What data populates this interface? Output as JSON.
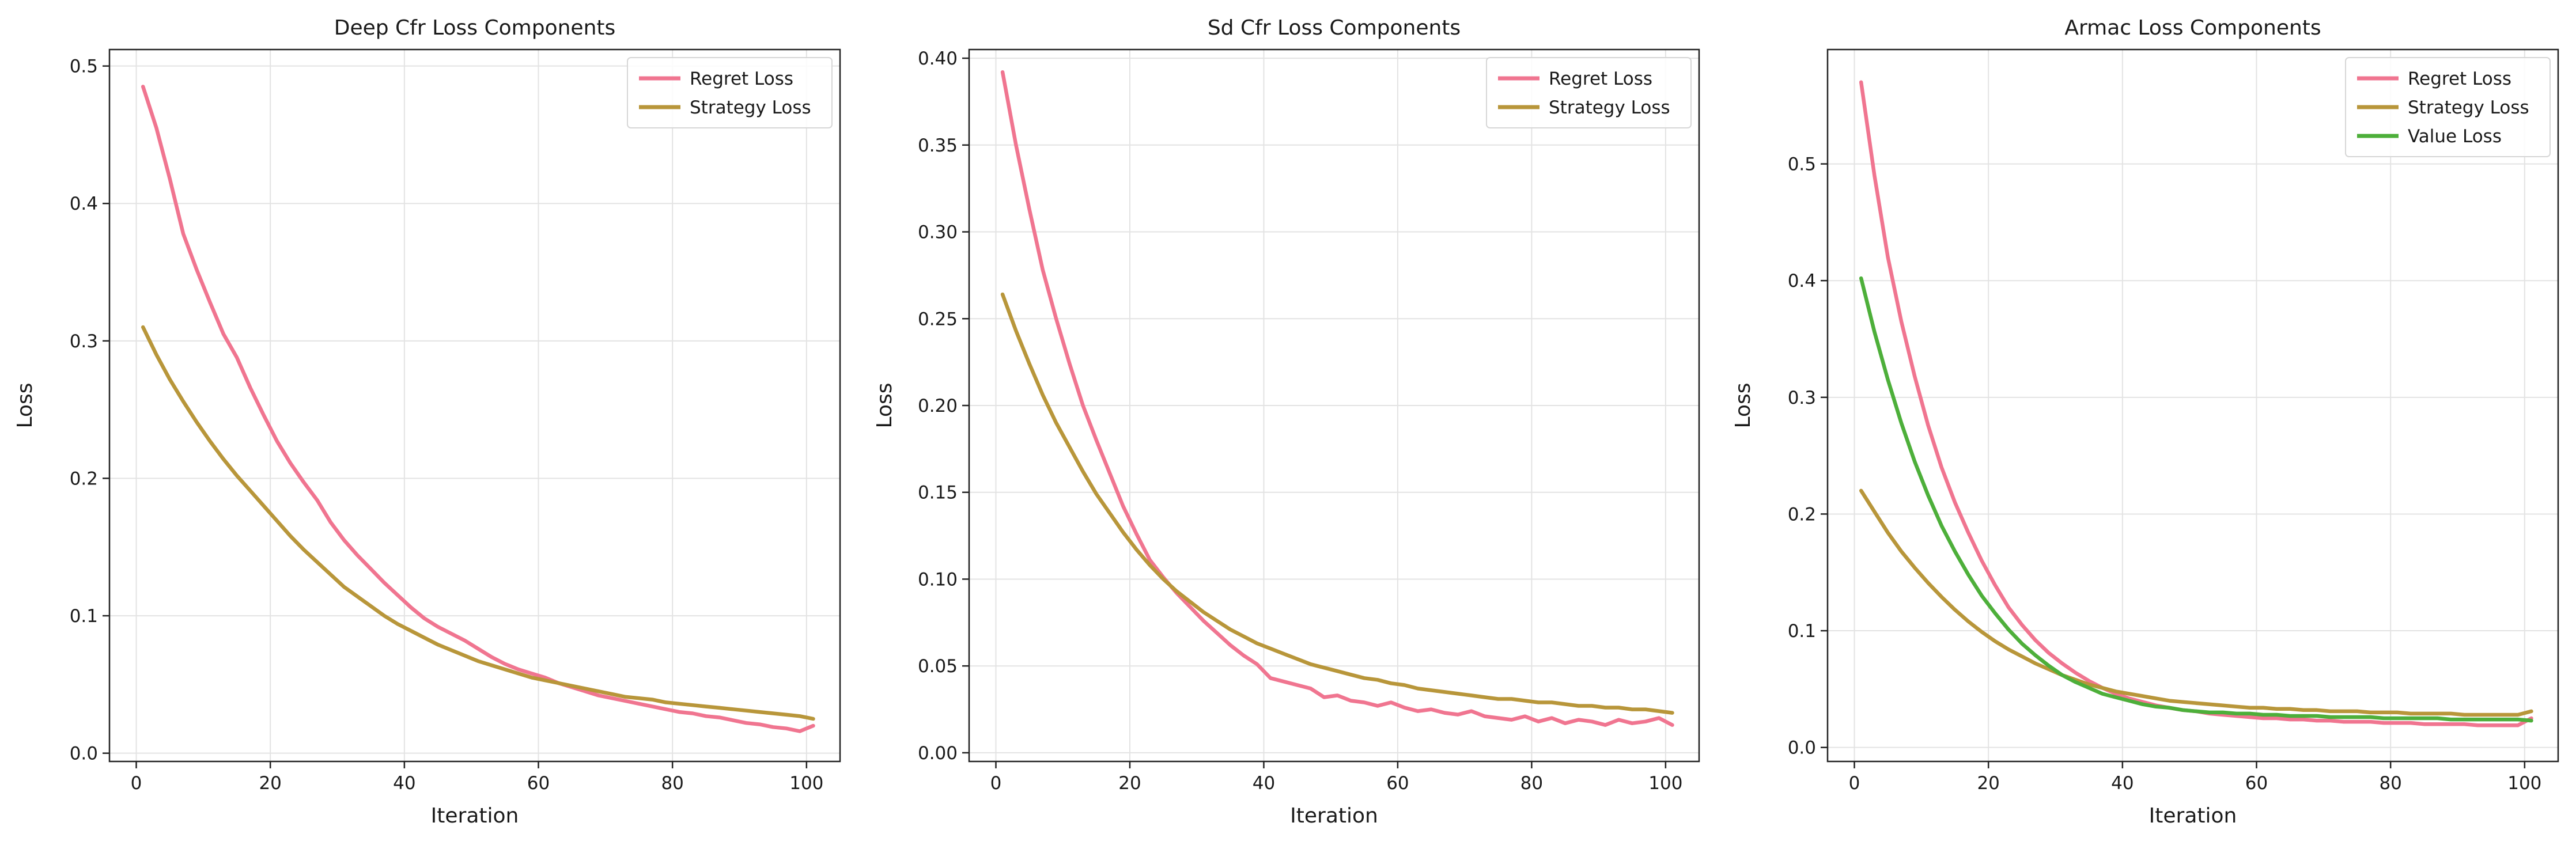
{
  "chart_data": [
    {
      "type": "line",
      "title": "Deep Cfr Loss Components",
      "xlabel": "Iteration",
      "ylabel": "Loss",
      "xlim": [
        -4,
        105
      ],
      "ylim": [
        -0.006,
        0.512
      ],
      "xticks": [
        0,
        20,
        40,
        60,
        80,
        100
      ],
      "yticks": [
        0.0,
        0.1,
        0.2,
        0.3,
        0.4,
        0.5
      ],
      "ytick_decimals": 1,
      "grid": true,
      "legend": "top-right",
      "series": [
        {
          "name": "Regret Loss",
          "color": "#f07590",
          "x_start": 1,
          "x_step": 2,
          "values": [
            0.485,
            0.455,
            0.418,
            0.378,
            0.352,
            0.328,
            0.305,
            0.288,
            0.266,
            0.246,
            0.227,
            0.211,
            0.197,
            0.184,
            0.168,
            0.155,
            0.144,
            0.134,
            0.124,
            0.115,
            0.106,
            0.098,
            0.092,
            0.087,
            0.082,
            0.076,
            0.07,
            0.065,
            0.061,
            0.058,
            0.055,
            0.051,
            0.048,
            0.045,
            0.042,
            0.04,
            0.038,
            0.036,
            0.034,
            0.032,
            0.03,
            0.029,
            0.027,
            0.026,
            0.024,
            0.022,
            0.021,
            0.019,
            0.018,
            0.016,
            0.02
          ]
        },
        {
          "name": "Strategy Loss",
          "color": "#b8963a",
          "x_start": 1,
          "x_step": 2,
          "values": [
            0.31,
            0.29,
            0.272,
            0.256,
            0.241,
            0.227,
            0.214,
            0.202,
            0.191,
            0.18,
            0.169,
            0.158,
            0.148,
            0.139,
            0.13,
            0.121,
            0.114,
            0.107,
            0.1,
            0.094,
            0.089,
            0.084,
            0.079,
            0.075,
            0.071,
            0.067,
            0.064,
            0.061,
            0.058,
            0.055,
            0.053,
            0.051,
            0.049,
            0.047,
            0.045,
            0.043,
            0.041,
            0.04,
            0.039,
            0.037,
            0.036,
            0.035,
            0.034,
            0.033,
            0.032,
            0.031,
            0.03,
            0.029,
            0.028,
            0.027,
            0.025
          ]
        }
      ]
    },
    {
      "type": "line",
      "title": "Sd Cfr Loss Components",
      "xlabel": "Iteration",
      "ylabel": "Loss",
      "xlim": [
        -4,
        105
      ],
      "ylim": [
        -0.005,
        0.405
      ],
      "xticks": [
        0,
        20,
        40,
        60,
        80,
        100
      ],
      "yticks": [
        0.0,
        0.05,
        0.1,
        0.15,
        0.2,
        0.25,
        0.3,
        0.35,
        0.4
      ],
      "ytick_decimals": 2,
      "grid": true,
      "legend": "top-right",
      "series": [
        {
          "name": "Regret Loss",
          "color": "#f07590",
          "x_start": 1,
          "x_step": 2,
          "values": [
            0.392,
            0.35,
            0.313,
            0.278,
            0.25,
            0.224,
            0.2,
            0.18,
            0.161,
            0.142,
            0.126,
            0.111,
            0.101,
            0.092,
            0.084,
            0.076,
            0.069,
            0.062,
            0.056,
            0.051,
            0.043,
            0.041,
            0.039,
            0.037,
            0.032,
            0.033,
            0.03,
            0.029,
            0.027,
            0.029,
            0.026,
            0.024,
            0.025,
            0.023,
            0.022,
            0.024,
            0.021,
            0.02,
            0.019,
            0.021,
            0.018,
            0.02,
            0.017,
            0.019,
            0.018,
            0.016,
            0.019,
            0.017,
            0.018,
            0.02,
            0.016
          ]
        },
        {
          "name": "Strategy Loss",
          "color": "#b8963a",
          "x_start": 1,
          "x_step": 2,
          "values": [
            0.264,
            0.243,
            0.224,
            0.206,
            0.19,
            0.176,
            0.162,
            0.149,
            0.138,
            0.127,
            0.117,
            0.108,
            0.1,
            0.093,
            0.087,
            0.081,
            0.076,
            0.071,
            0.067,
            0.063,
            0.06,
            0.057,
            0.054,
            0.051,
            0.049,
            0.047,
            0.045,
            0.043,
            0.042,
            0.04,
            0.039,
            0.037,
            0.036,
            0.035,
            0.034,
            0.033,
            0.032,
            0.031,
            0.031,
            0.03,
            0.029,
            0.029,
            0.028,
            0.027,
            0.027,
            0.026,
            0.026,
            0.025,
            0.025,
            0.024,
            0.023
          ]
        }
      ]
    },
    {
      "type": "line",
      "title": "Armac Loss Components",
      "xlabel": "Iteration",
      "ylabel": "Loss",
      "xlim": [
        -4,
        105
      ],
      "ylim": [
        -0.012,
        0.598
      ],
      "xticks": [
        0,
        20,
        40,
        60,
        80,
        100
      ],
      "yticks": [
        0.0,
        0.1,
        0.2,
        0.3,
        0.4,
        0.5
      ],
      "ytick_decimals": 1,
      "grid": true,
      "legend": "top-right",
      "series": [
        {
          "name": "Regret Loss",
          "color": "#f07590",
          "x_start": 1,
          "x_step": 2,
          "values": [
            0.57,
            0.49,
            0.42,
            0.365,
            0.318,
            0.276,
            0.24,
            0.21,
            0.184,
            0.16,
            0.139,
            0.12,
            0.105,
            0.092,
            0.081,
            0.072,
            0.064,
            0.057,
            0.051,
            0.046,
            0.042,
            0.039,
            0.036,
            0.034,
            0.032,
            0.031,
            0.029,
            0.028,
            0.027,
            0.026,
            0.025,
            0.025,
            0.024,
            0.024,
            0.023,
            0.023,
            0.022,
            0.022,
            0.022,
            0.021,
            0.021,
            0.021,
            0.02,
            0.02,
            0.02,
            0.02,
            0.019,
            0.019,
            0.019,
            0.019,
            0.025
          ]
        },
        {
          "name": "Strategy Loss",
          "color": "#b8963a",
          "x_start": 1,
          "x_step": 2,
          "values": [
            0.22,
            0.202,
            0.184,
            0.168,
            0.154,
            0.141,
            0.129,
            0.118,
            0.108,
            0.099,
            0.091,
            0.084,
            0.078,
            0.072,
            0.067,
            0.062,
            0.058,
            0.054,
            0.051,
            0.048,
            0.046,
            0.044,
            0.042,
            0.04,
            0.039,
            0.038,
            0.037,
            0.036,
            0.035,
            0.034,
            0.034,
            0.033,
            0.033,
            0.032,
            0.032,
            0.031,
            0.031,
            0.031,
            0.03,
            0.03,
            0.03,
            0.029,
            0.029,
            0.029,
            0.029,
            0.028,
            0.028,
            0.028,
            0.028,
            0.028,
            0.031
          ]
        },
        {
          "name": "Value Loss",
          "color": "#4daf3a",
          "x_start": 1,
          "x_step": 2,
          "values": [
            0.402,
            0.356,
            0.315,
            0.278,
            0.245,
            0.216,
            0.19,
            0.168,
            0.148,
            0.13,
            0.115,
            0.101,
            0.089,
            0.079,
            0.07,
            0.062,
            0.056,
            0.051,
            0.046,
            0.043,
            0.04,
            0.037,
            0.035,
            0.034,
            0.032,
            0.031,
            0.03,
            0.03,
            0.029,
            0.029,
            0.028,
            0.028,
            0.027,
            0.027,
            0.027,
            0.026,
            0.026,
            0.026,
            0.026,
            0.025,
            0.025,
            0.025,
            0.025,
            0.025,
            0.024,
            0.024,
            0.024,
            0.024,
            0.024,
            0.024,
            0.023
          ]
        }
      ]
    }
  ]
}
